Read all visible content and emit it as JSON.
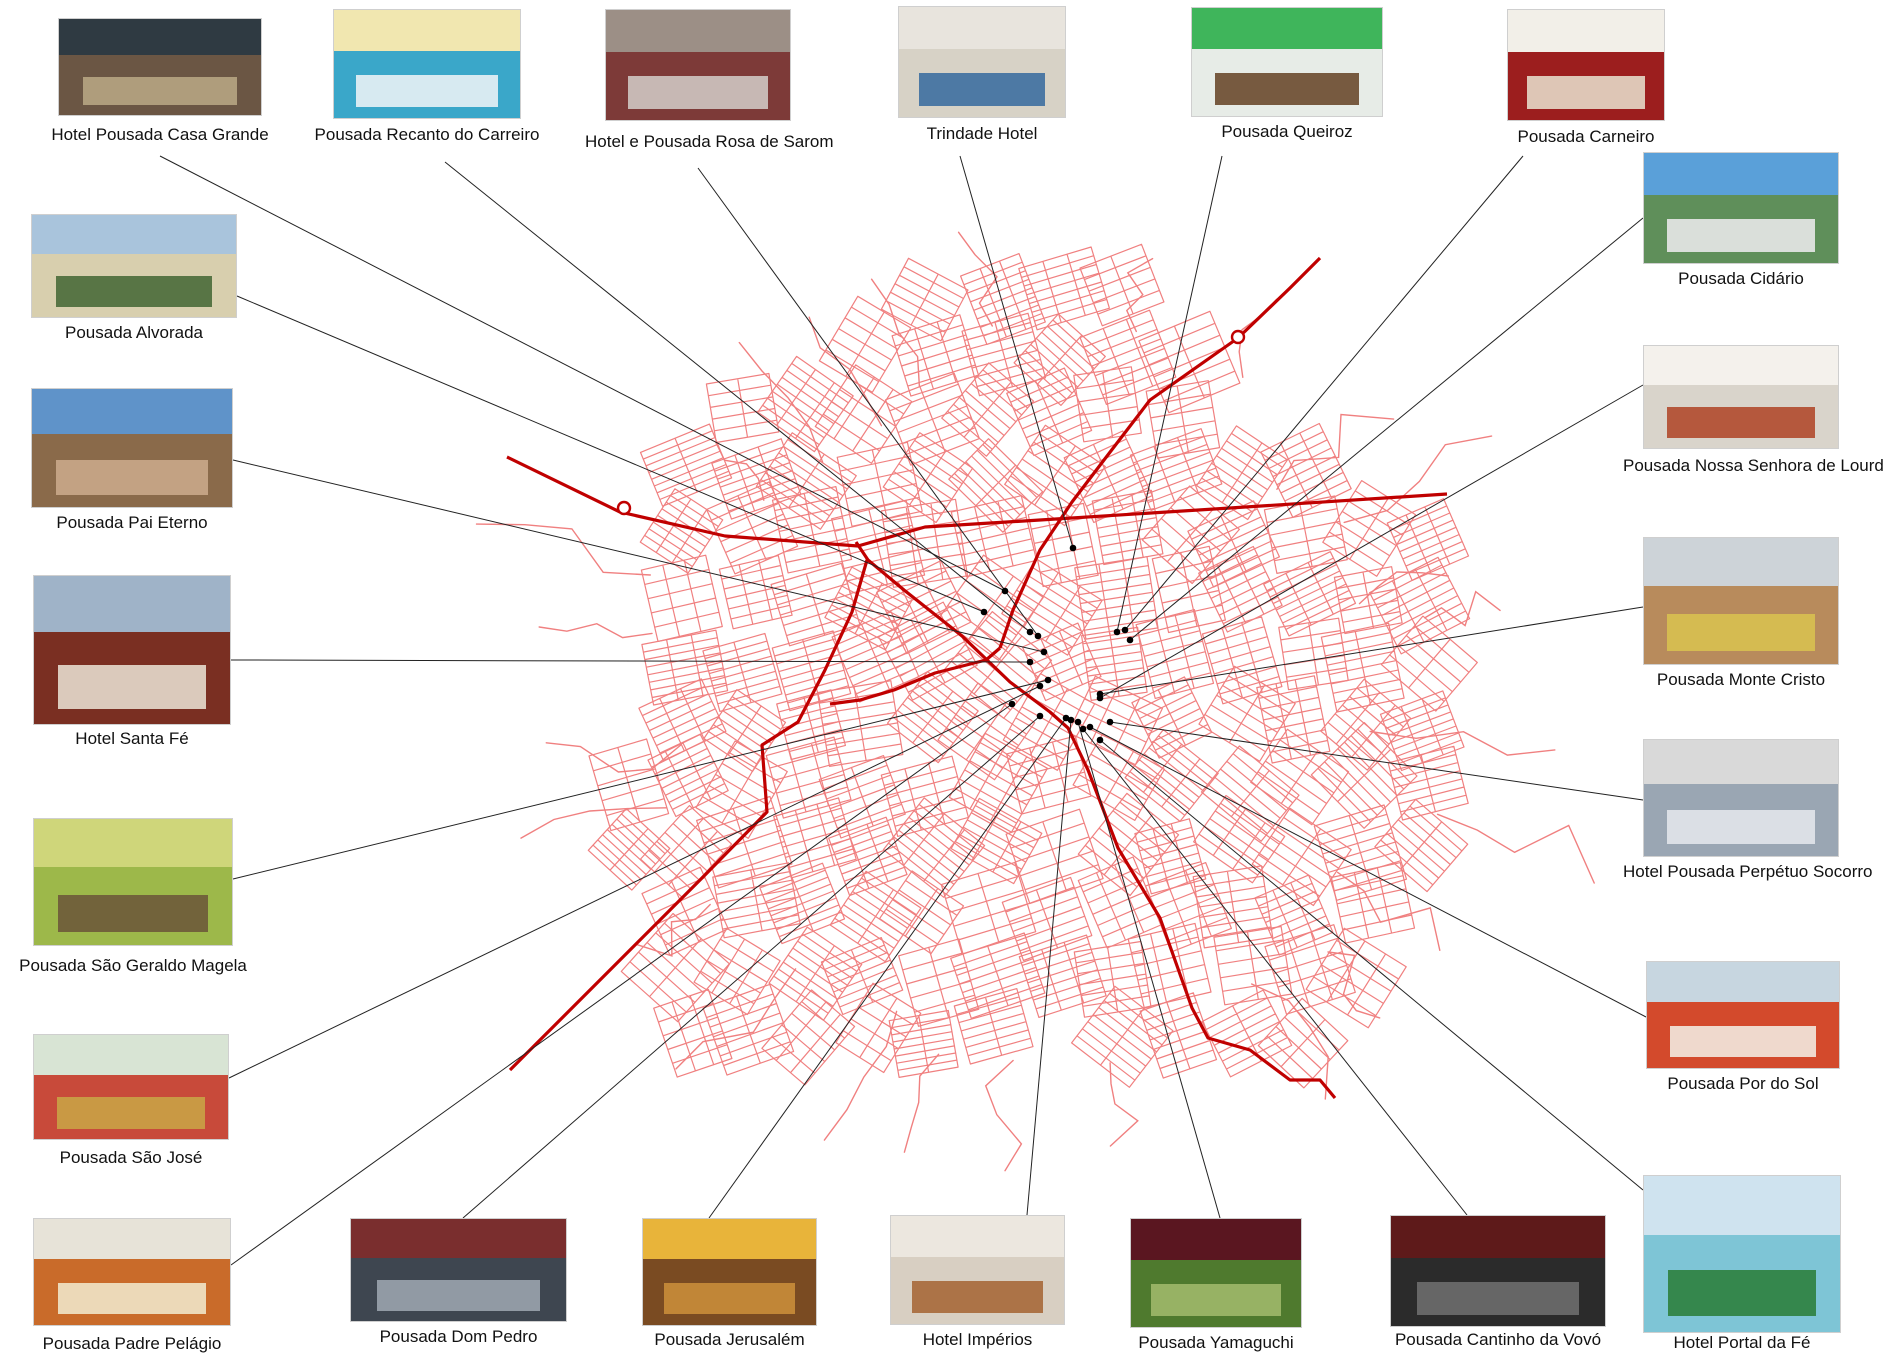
{
  "map": {
    "road_color": "#f08080",
    "highway_color": "#c00000",
    "leader_color": "#222222",
    "marker_color": "#000000"
  },
  "hotels": [
    {
      "id": "casa-grande",
      "name": "Hotel Pousada Casa Grande",
      "sky": "#2f3a42",
      "wall": "#6b5644",
      "accent": "#b7a583"
    },
    {
      "id": "recanto-carreiro",
      "name": "Pousada Recanto do Carreiro",
      "sky": "#f1e7b0",
      "wall": "#3aa7c9",
      "accent": "#e9f2f5"
    },
    {
      "id": "rosa-sarom",
      "name": "Hotel e Pousada Rosa de Sarom",
      "sky": "#9c8f86",
      "wall": "#7d3a38",
      "accent": "#cfc7c2"
    },
    {
      "id": "trindade",
      "name": "Trindade Hotel",
      "sky": "#e8e4dd",
      "wall": "#d7d2c6",
      "accent": "#3e6fa0"
    },
    {
      "id": "queiroz",
      "name": "Pousada Queiroz",
      "sky": "#3fb55b",
      "wall": "#e7ece7",
      "accent": "#6a4a2e"
    },
    {
      "id": "carneiro",
      "name": "Pousada Carneiro",
      "sky": "#f2efe8",
      "wall": "#9c1e1e",
      "accent": "#e6d8c6"
    },
    {
      "id": "cidario",
      "name": "Pousada Cidário",
      "sky": "#5aa0d9",
      "wall": "#5f8f5a",
      "accent": "#e8e8e8"
    },
    {
      "id": "nossa-senhora-lourdes",
      "name": "Pousada Nossa Senhora de Lourdes",
      "sky": "#f4f1ec",
      "wall": "#d9d4cb",
      "accent": "#b04a2d"
    },
    {
      "id": "monte-cristo",
      "name": "Pousada Monte Cristo",
      "sky": "#cdd3d8",
      "wall": "#b88b5c",
      "accent": "#d8c050"
    },
    {
      "id": "perpetuo-socorro",
      "name": "Hotel Pousada Perpétuo Socorro",
      "sky": "#d9d9d9",
      "wall": "#9aa6b3",
      "accent": "#e2e6ea"
    },
    {
      "id": "por-do-sol",
      "name": "Pousada Por do Sol",
      "sky": "#c7d6e0",
      "wall": "#d34a2c",
      "accent": "#f2e9df"
    },
    {
      "id": "portal-da-fe",
      "name": "Hotel Portal da Fé",
      "sky": "#cfe3ef",
      "wall": "#7ec5d6",
      "accent": "#2e7f3e"
    },
    {
      "id": "cantinho-vovo",
      "name": "Pousada Cantinho da Vovó",
      "sky": "#5e1a1a",
      "wall": "#2b2b2b",
      "accent": "#6d6d6d"
    },
    {
      "id": "yamaguchi",
      "name": "Pousada Yamaguchi",
      "sky": "#5a1620",
      "wall": "#4f7a2e",
      "accent": "#9fb86a"
    },
    {
      "id": "imperios",
      "name": "Hotel Impérios",
      "sky": "#ece7df",
      "wall": "#d8cfc2",
      "accent": "#a7683a"
    },
    {
      "id": "jerusalem",
      "name": "Pousada Jerusalém",
      "sky": "#e8b43a",
      "wall": "#7a4b22",
      "accent": "#c98d3a"
    },
    {
      "id": "dom-pedro",
      "name": "Pousada Dom Pedro",
      "sky": "#7a2e2e",
      "wall": "#3e4650",
      "accent": "#9aa3ad"
    },
    {
      "id": "padre-pelagio",
      "name": "Pousada Padre Pelágio",
      "sky": "#e7e3d8",
      "wall": "#c96b2a",
      "accent": "#f0e6c8"
    },
    {
      "id": "sao-jose",
      "name": "Pousada São José",
      "sky": "#d8e4d4",
      "wall": "#c84a3a",
      "accent": "#c9a246"
    },
    {
      "id": "sao-geraldo-magela",
      "name": "Pousada São Geraldo Magela",
      "sky": "#cfd67a",
      "wall": "#9db84a",
      "accent": "#6e5a3a"
    },
    {
      "id": "santa-fe",
      "name": "Hotel Santa Fé",
      "sky": "#9fb3c8",
      "wall": "#7a2f22",
      "accent": "#e6dccd"
    },
    {
      "id": "pai-eterno",
      "name": "Pousada Pai Eterno",
      "sky": "#5f93c9",
      "wall": "#8a6a4a",
      "accent": "#c9a88a"
    },
    {
      "id": "alvorada",
      "name": "Pousada Alvorada",
      "sky": "#a9c4dc",
      "wall": "#d8cfae",
      "accent": "#4a6a3a"
    }
  ]
}
